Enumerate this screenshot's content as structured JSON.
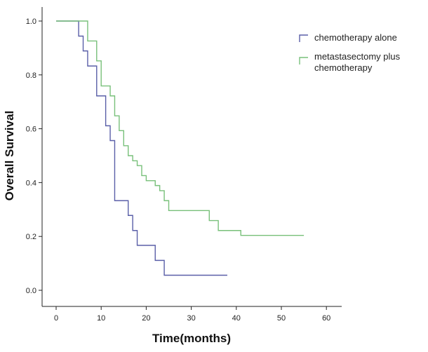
{
  "chart_data": {
    "type": "line",
    "subtype": "kaplan-meier step",
    "title": "",
    "xlabel": "Time(months)",
    "ylabel": "Overall Survival",
    "xlim": [
      0,
      60
    ],
    "ylim": [
      0,
      1.0
    ],
    "x_ticks": [
      0,
      10,
      20,
      30,
      40,
      50,
      60
    ],
    "y_ticks": [
      0.0,
      0.2,
      0.4,
      0.6,
      0.8,
      1.0
    ],
    "x_tick_labels": [
      "0",
      "10",
      "20",
      "30",
      "40",
      "50",
      "60"
    ],
    "y_tick_labels": [
      "0.0",
      "0.2",
      "0.4",
      "0.6",
      "0.8",
      "1.0"
    ],
    "grid": false,
    "legend_position": "top-right",
    "series": [
      {
        "name": "chemotherapy alone",
        "color": "#5a5fa8",
        "legend_label_lines": [
          "chemotherapy alone"
        ],
        "x": [
          0,
          5,
          6,
          7,
          9,
          11,
          12,
          13,
          16,
          17,
          18,
          22,
          24,
          38
        ],
        "y": [
          1.0,
          0.944,
          0.889,
          0.833,
          0.722,
          0.611,
          0.556,
          0.333,
          0.278,
          0.222,
          0.167,
          0.111,
          0.056,
          0.056
        ]
      },
      {
        "name": "metastasectomy plus chemotherapy",
        "color": "#78c07a",
        "legend_label_lines": [
          "metastasectomy plus",
          "chemotherapy"
        ],
        "x": [
          0,
          7,
          9,
          10,
          12,
          13,
          14,
          15,
          16,
          17,
          18,
          19,
          20,
          22,
          23,
          24,
          25,
          34,
          36,
          41,
          55
        ],
        "y": [
          1.0,
          0.926,
          0.852,
          0.759,
          0.722,
          0.648,
          0.593,
          0.537,
          0.5,
          0.481,
          0.463,
          0.426,
          0.407,
          0.389,
          0.37,
          0.333,
          0.296,
          0.259,
          0.222,
          0.204,
          0.204
        ]
      }
    ]
  }
}
